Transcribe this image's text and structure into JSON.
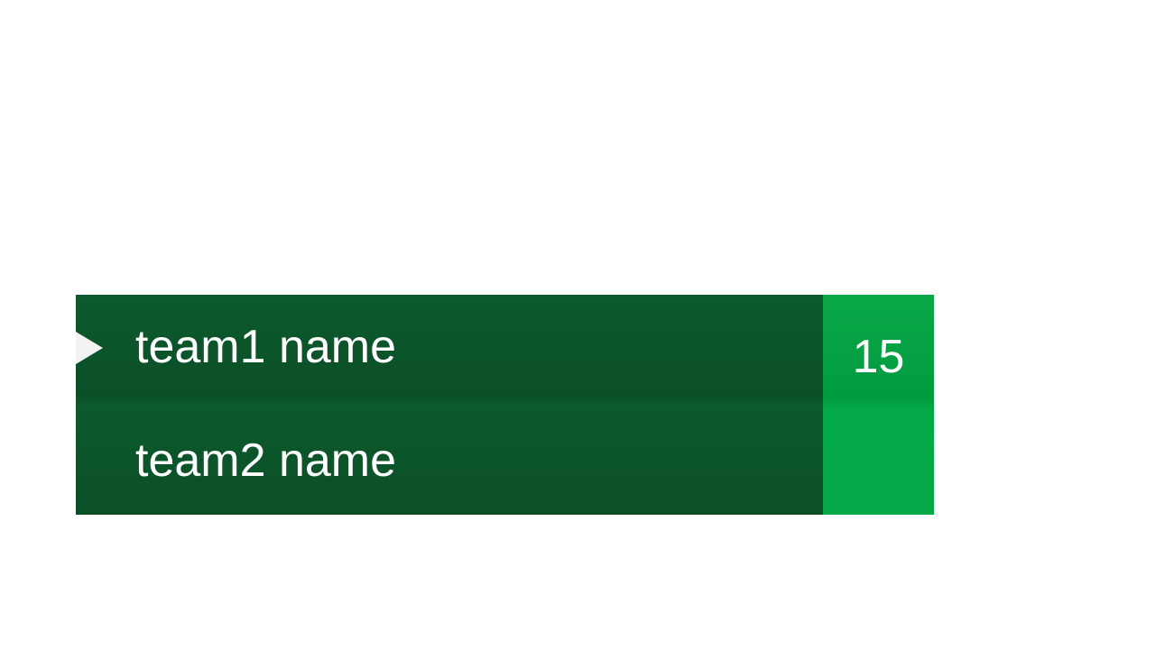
{
  "scoreboard": {
    "team1": {
      "name": "team1 name",
      "score": "15",
      "serving": true
    },
    "team2": {
      "name": "team2 name",
      "score": ""
    },
    "colors": {
      "names_panel": "#0b4f27",
      "score_panel": "#02a445",
      "text": "#ffffff",
      "serve_indicator": "#f2f2f2"
    },
    "serve_icon": "play-triangle-icon"
  }
}
